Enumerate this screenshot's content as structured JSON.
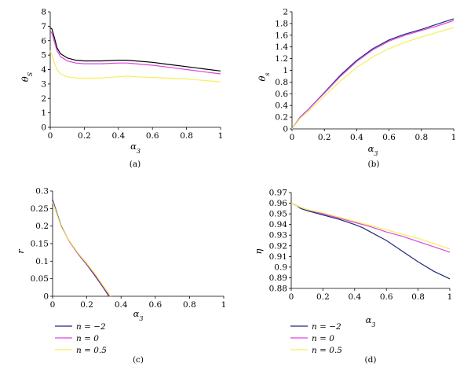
{
  "legend": [
    {
      "name": "n = −2",
      "color": "#1f2a78"
    },
    {
      "name": "n = 0",
      "color": "#dd44dd"
    },
    {
      "name": "n = 0.5",
      "color": "#f3f05a"
    }
  ],
  "chart_data": [
    {
      "type": "line",
      "panel_label": "(a)",
      "xlabel": "α3",
      "ylabel": "θS",
      "xlim": [
        0,
        1
      ],
      "ylim": [
        0,
        8
      ],
      "xticks": [
        "0",
        "0.2",
        "0.4",
        "0.6",
        "0.8",
        "1"
      ],
      "yticks": [
        "0",
        "1",
        "2",
        "3",
        "4",
        "5",
        "6",
        "7",
        "8"
      ],
      "series": [
        {
          "color": "#000000",
          "x": [
            0,
            0.01,
            0.02,
            0.04,
            0.06,
            0.1,
            0.15,
            0.2,
            0.3,
            0.4,
            0.45,
            0.5,
            0.6,
            0.7,
            0.8,
            0.9,
            1.0
          ],
          "y": [
            6.9,
            6.8,
            6.4,
            5.5,
            5.1,
            4.8,
            4.65,
            4.6,
            4.6,
            4.65,
            4.65,
            4.6,
            4.5,
            4.35,
            4.2,
            4.05,
            3.9
          ]
        },
        {
          "color": "#dd44dd",
          "x": [
            0,
            0.01,
            0.02,
            0.04,
            0.06,
            0.1,
            0.15,
            0.2,
            0.3,
            0.4,
            0.45,
            0.5,
            0.6,
            0.7,
            0.8,
            0.9,
            1.0
          ],
          "y": [
            6.7,
            6.5,
            6.1,
            5.3,
            4.9,
            4.6,
            4.45,
            4.4,
            4.4,
            4.45,
            4.45,
            4.4,
            4.3,
            4.15,
            4.0,
            3.85,
            3.7
          ]
        },
        {
          "color": "#f3f05a",
          "x": [
            0,
            0.01,
            0.02,
            0.04,
            0.06,
            0.1,
            0.15,
            0.2,
            0.3,
            0.4,
            0.45,
            0.5,
            0.6,
            0.7,
            0.8,
            0.9,
            1.0
          ],
          "y": [
            5.3,
            5.0,
            4.6,
            4.0,
            3.7,
            3.5,
            3.42,
            3.4,
            3.42,
            3.5,
            3.55,
            3.5,
            3.45,
            3.4,
            3.35,
            3.25,
            3.15
          ]
        }
      ]
    },
    {
      "type": "line",
      "panel_label": "(b)",
      "xlabel": "α3",
      "ylabel": "θs",
      "xlim": [
        0,
        1
      ],
      "ylim": [
        0,
        2
      ],
      "xticks": [
        "0",
        "0.2",
        "0.4",
        "0.6",
        "0.8",
        "1"
      ],
      "yticks": [
        "0",
        "0.2",
        "0.4",
        "0.6",
        "0.8",
        "1",
        "1.2",
        "1.4",
        "1.6",
        "1.8",
        "2"
      ],
      "series": [
        {
          "color": "#1f2a78",
          "x": [
            0,
            0.05,
            0.1,
            0.2,
            0.3,
            0.4,
            0.5,
            0.6,
            0.7,
            0.8,
            0.9,
            1.0
          ],
          "y": [
            0,
            0.2,
            0.33,
            0.62,
            0.92,
            1.17,
            1.37,
            1.52,
            1.62,
            1.7,
            1.79,
            1.88
          ]
        },
        {
          "color": "#dd44dd",
          "x": [
            0,
            0.05,
            0.1,
            0.2,
            0.3,
            0.4,
            0.5,
            0.6,
            0.7,
            0.8,
            0.9,
            1.0
          ],
          "y": [
            0,
            0.2,
            0.33,
            0.61,
            0.9,
            1.15,
            1.35,
            1.5,
            1.6,
            1.68,
            1.76,
            1.85
          ]
        },
        {
          "color": "#f3f05a",
          "x": [
            0,
            0.05,
            0.1,
            0.2,
            0.3,
            0.4,
            0.5,
            0.6,
            0.7,
            0.8,
            0.9,
            1.0
          ],
          "y": [
            0,
            0.18,
            0.3,
            0.56,
            0.82,
            1.05,
            1.23,
            1.37,
            1.48,
            1.57,
            1.65,
            1.73
          ]
        }
      ]
    },
    {
      "type": "line",
      "panel_label": "(c)",
      "xlabel": "α3",
      "ylabel": "r",
      "xlim": [
        0,
        1
      ],
      "ylim": [
        0,
        0.3
      ],
      "xticks": [
        "0",
        "0.2",
        "0.4",
        "0.6",
        "0.8",
        "1"
      ],
      "yticks": [
        "0",
        "0.05",
        "0.1",
        "0.15",
        "0.2",
        "0.25",
        "0.3"
      ],
      "series": [
        {
          "color": "#1f2a78",
          "x": [
            0,
            0.02,
            0.05,
            0.1,
            0.15,
            0.2,
            0.25,
            0.3,
            0.33
          ],
          "y": [
            0.275,
            0.245,
            0.2,
            0.155,
            0.12,
            0.09,
            0.057,
            0.022,
            0.0
          ]
        },
        {
          "color": "#dd44dd",
          "x": [
            0,
            0.02,
            0.05,
            0.1,
            0.15,
            0.2,
            0.25,
            0.3,
            0.335
          ],
          "y": [
            0.27,
            0.242,
            0.198,
            0.155,
            0.121,
            0.092,
            0.06,
            0.025,
            0.0
          ]
        },
        {
          "color": "#f3f05a",
          "x": [
            0,
            0.02,
            0.05,
            0.1,
            0.15,
            0.2,
            0.25,
            0.3,
            0.34
          ],
          "y": [
            0.268,
            0.24,
            0.197,
            0.157,
            0.123,
            0.094,
            0.063,
            0.027,
            0.0
          ]
        }
      ]
    },
    {
      "type": "line",
      "panel_label": "(d)",
      "xlabel": "α3",
      "ylabel": "η",
      "xlim": [
        0,
        1
      ],
      "ylim": [
        0.88,
        0.97
      ],
      "xticks": [
        "0",
        "0.2",
        "0.4",
        "0.6",
        "0.8",
        "1"
      ],
      "yticks": [
        "0.88",
        "0.89",
        "0.9",
        "0.91",
        "0.92",
        "0.93",
        "0.94",
        "0.95",
        "0.96",
        "0.97"
      ],
      "series": [
        {
          "color": "#1f2a78",
          "x": [
            0,
            0.03,
            0.06,
            0.1,
            0.2,
            0.3,
            0.4,
            0.45,
            0.5,
            0.6,
            0.7,
            0.8,
            0.9,
            1.0
          ],
          "y": [
            0.96,
            0.958,
            0.955,
            0.953,
            0.949,
            0.945,
            0.94,
            0.937,
            0.933,
            0.925,
            0.915,
            0.905,
            0.896,
            0.889
          ]
        },
        {
          "color": "#dd44dd",
          "x": [
            0,
            0.03,
            0.06,
            0.1,
            0.2,
            0.3,
            0.4,
            0.5,
            0.6,
            0.7,
            0.8,
            0.9,
            1.0
          ],
          "y": [
            0.96,
            0.958,
            0.956,
            0.954,
            0.95,
            0.946,
            0.942,
            0.938,
            0.933,
            0.929,
            0.924,
            0.919,
            0.914
          ]
        },
        {
          "color": "#f3f05a",
          "x": [
            0,
            0.03,
            0.06,
            0.1,
            0.2,
            0.3,
            0.4,
            0.5,
            0.6,
            0.7,
            0.8,
            0.9,
            1.0
          ],
          "y": [
            0.96,
            0.958,
            0.956,
            0.954,
            0.951,
            0.947,
            0.943,
            0.939,
            0.935,
            0.931,
            0.927,
            0.922,
            0.917
          ]
        }
      ]
    }
  ]
}
